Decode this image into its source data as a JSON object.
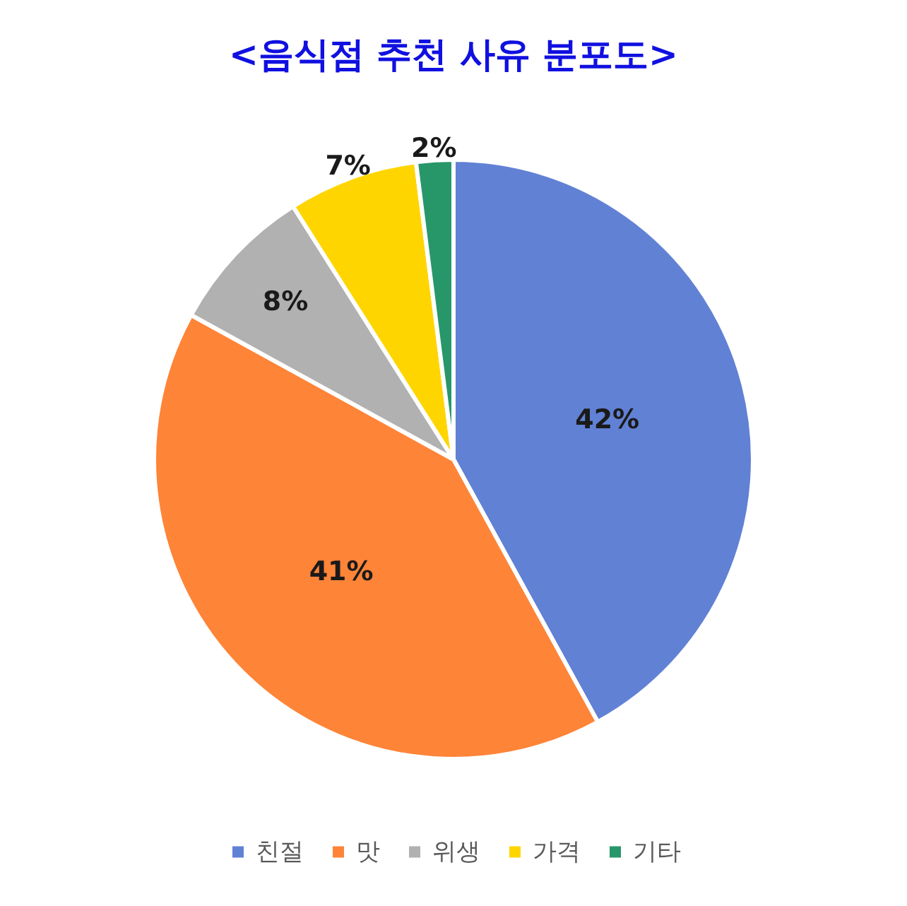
{
  "chart_data": {
    "type": "pie",
    "title": "<음식점 추천 사유 분포도>",
    "categories": [
      "친절",
      "맛",
      "위생",
      "가격",
      "기타"
    ],
    "values": [
      42,
      41,
      8,
      7,
      2
    ],
    "colors": [
      "#6181d5",
      "#fe8438",
      "#b1b1b1",
      "#ffd500",
      "#27976a"
    ],
    "value_labels": [
      "42%",
      "41%",
      "8%",
      "7%",
      "2%"
    ],
    "legend": "bottom"
  }
}
